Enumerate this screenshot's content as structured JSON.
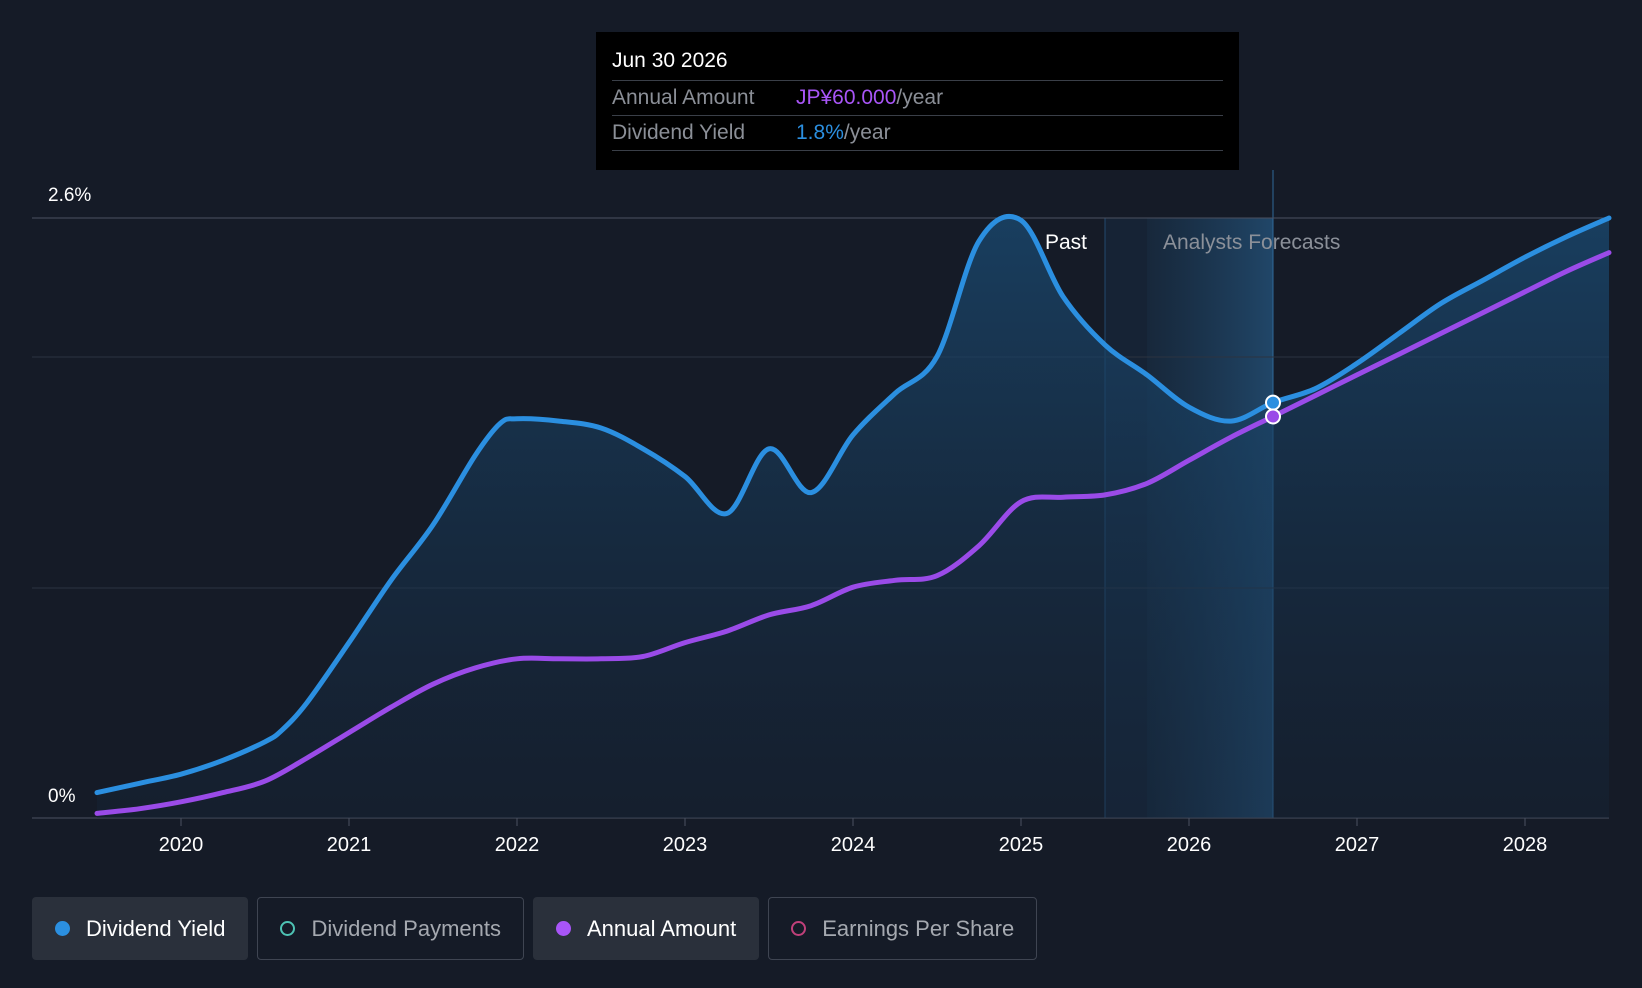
{
  "chart_data": {
    "type": "line",
    "title": "",
    "xlabel": "",
    "ylabel": "",
    "y_top_label": "2.6%",
    "y_bottom_label": "0%",
    "ylim": [
      0,
      2.6
    ],
    "xlim": [
      2019.5,
      2028.5
    ],
    "x_ticks": [
      "2020",
      "2021",
      "2022",
      "2023",
      "2024",
      "2025",
      "2026",
      "2027",
      "2028"
    ],
    "regions": {
      "past_label": "Past",
      "forecast_label": "Analysts Forecasts",
      "past_end": 2025.5,
      "forecast_shade_start": 2025.75,
      "cursor": 2026.5
    },
    "series": [
      {
        "name": "Dividend Yield",
        "color": "#2b8fe0",
        "area": true,
        "points": [
          [
            2019.5,
            0.11
          ],
          [
            2019.75,
            0.15
          ],
          [
            2020.0,
            0.19
          ],
          [
            2020.25,
            0.25
          ],
          [
            2020.5,
            0.33
          ],
          [
            2020.6,
            0.38
          ],
          [
            2020.75,
            0.5
          ],
          [
            2021.0,
            0.76
          ],
          [
            2021.25,
            1.03
          ],
          [
            2021.5,
            1.27
          ],
          [
            2021.75,
            1.57
          ],
          [
            2021.9,
            1.71
          ],
          [
            2022.0,
            1.73
          ],
          [
            2022.25,
            1.72
          ],
          [
            2022.5,
            1.69
          ],
          [
            2022.75,
            1.6
          ],
          [
            2023.0,
            1.48
          ],
          [
            2023.25,
            1.32
          ],
          [
            2023.5,
            1.6
          ],
          [
            2023.75,
            1.41
          ],
          [
            2024.0,
            1.66
          ],
          [
            2024.25,
            1.84
          ],
          [
            2024.5,
            2.0
          ],
          [
            2024.75,
            2.5
          ],
          [
            2025.0,
            2.59
          ],
          [
            2025.25,
            2.26
          ],
          [
            2025.5,
            2.05
          ],
          [
            2025.75,
            1.92
          ],
          [
            2026.0,
            1.78
          ],
          [
            2026.25,
            1.72
          ],
          [
            2026.5,
            1.8
          ],
          [
            2026.75,
            1.86
          ],
          [
            2027.0,
            1.97
          ],
          [
            2027.25,
            2.1
          ],
          [
            2027.5,
            2.23
          ],
          [
            2027.75,
            2.33
          ],
          [
            2028.0,
            2.43
          ],
          [
            2028.25,
            2.52
          ],
          [
            2028.5,
            2.6
          ]
        ]
      },
      {
        "name": "Annual Amount",
        "color": "#9a4be8",
        "area": false,
        "points": [
          [
            2019.5,
            0.02
          ],
          [
            2019.75,
            0.04
          ],
          [
            2020.0,
            0.07
          ],
          [
            2020.25,
            0.11
          ],
          [
            2020.5,
            0.16
          ],
          [
            2020.75,
            0.26
          ],
          [
            2021.0,
            0.37
          ],
          [
            2021.25,
            0.48
          ],
          [
            2021.5,
            0.58
          ],
          [
            2021.75,
            0.65
          ],
          [
            2022.0,
            0.69
          ],
          [
            2022.25,
            0.69
          ],
          [
            2022.5,
            0.69
          ],
          [
            2022.75,
            0.7
          ],
          [
            2023.0,
            0.76
          ],
          [
            2023.25,
            0.81
          ],
          [
            2023.5,
            0.88
          ],
          [
            2023.75,
            0.92
          ],
          [
            2024.0,
            1.0
          ],
          [
            2024.25,
            1.03
          ],
          [
            2024.5,
            1.05
          ],
          [
            2024.75,
            1.18
          ],
          [
            2025.0,
            1.37
          ],
          [
            2025.25,
            1.39
          ],
          [
            2025.5,
            1.4
          ],
          [
            2025.75,
            1.45
          ],
          [
            2026.0,
            1.55
          ],
          [
            2026.25,
            1.65
          ],
          [
            2026.5,
            1.74
          ],
          [
            2026.75,
            1.83
          ],
          [
            2027.0,
            1.92
          ],
          [
            2027.25,
            2.01
          ],
          [
            2027.5,
            2.1
          ],
          [
            2027.75,
            2.19
          ],
          [
            2028.0,
            2.28
          ],
          [
            2028.25,
            2.37
          ],
          [
            2028.5,
            2.45
          ]
        ]
      }
    ]
  },
  "tooltip": {
    "date": "Jun 30 2026",
    "amount_label": "Annual Amount",
    "amount_value": "JP¥60.000",
    "yield_label": "Dividend Yield",
    "yield_value": "1.8%",
    "per_year": "/year"
  },
  "legend": [
    {
      "label": "Dividend Yield",
      "color": "#2b8fe0"
    },
    {
      "label": "Dividend Payments",
      "color": "#4ec3b4"
    },
    {
      "label": "Annual Amount",
      "color": "#a855f7"
    },
    {
      "label": "Earnings Per Share",
      "color": "#c0407a"
    }
  ]
}
